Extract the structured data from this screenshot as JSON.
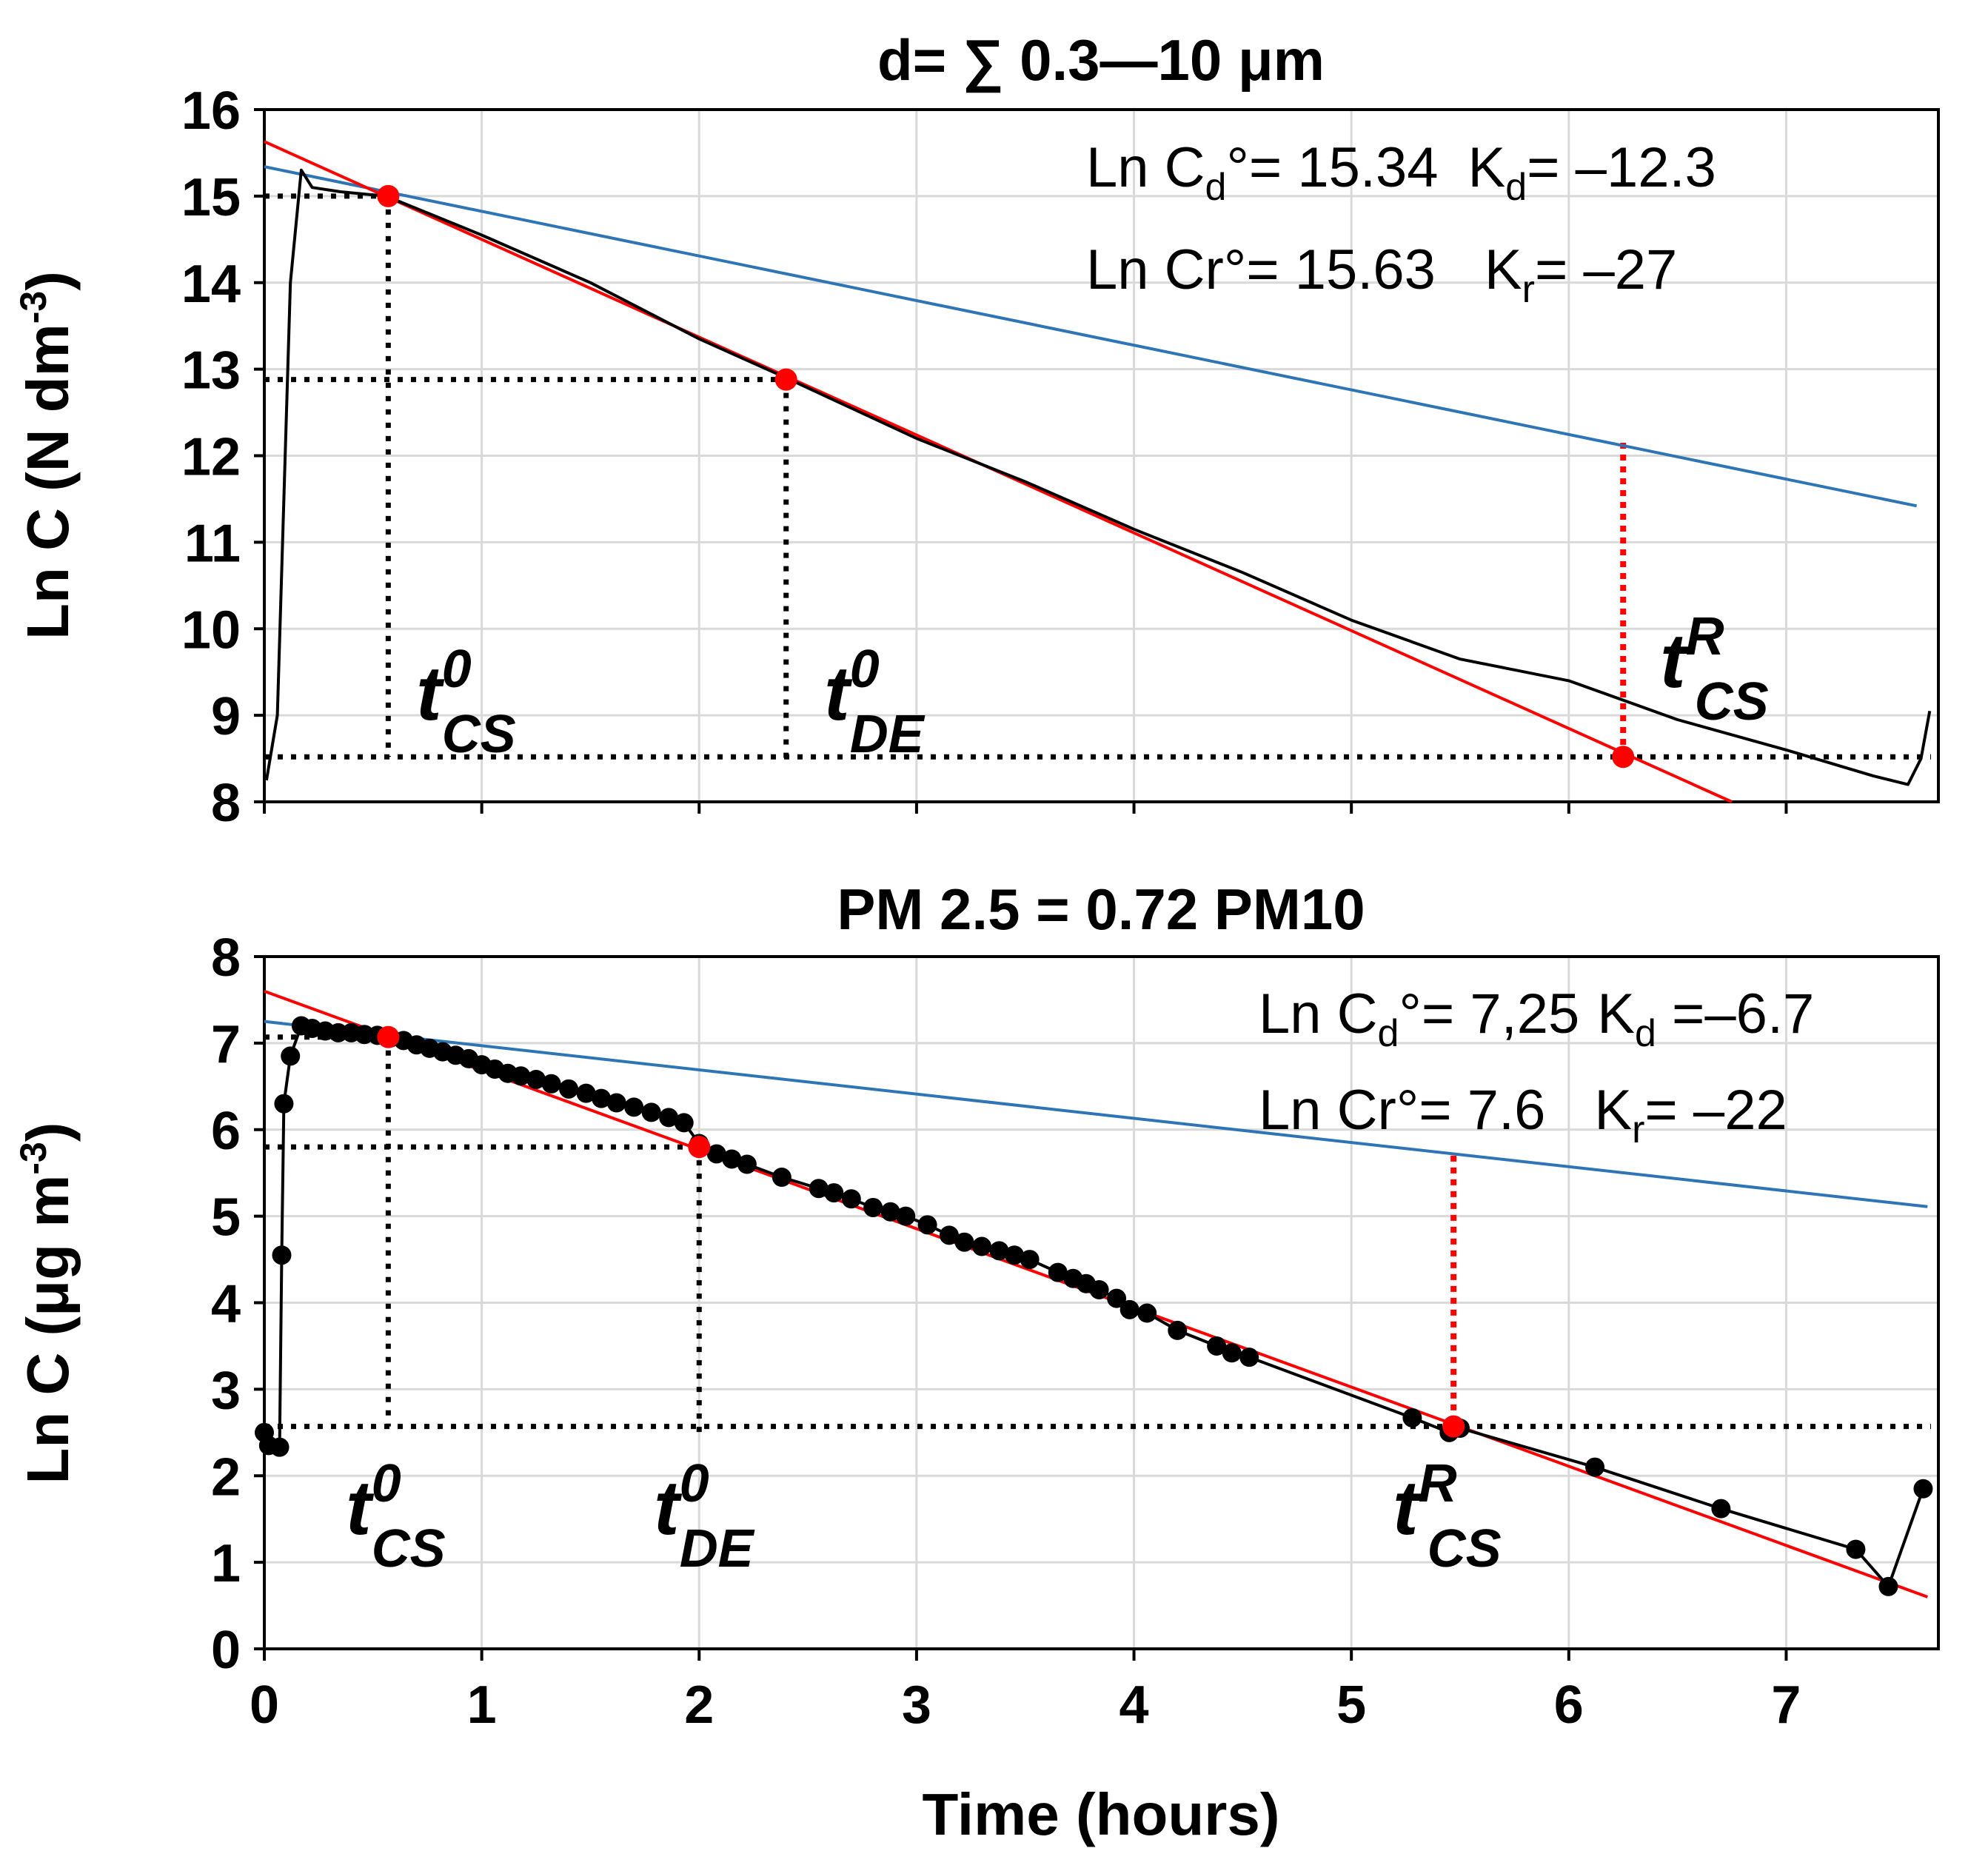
{
  "chart_data": [
    {
      "type": "line",
      "title": "d= ∑ 0.3—10 μm",
      "ylabel": "Ln C (N dm",
      "ylabel_sup": "-3",
      "ylabel_end": ")",
      "xlabel": "",
      "xlim": [
        0,
        7.7
      ],
      "ylim": [
        8,
        16
      ],
      "x_ticks": [
        0,
        1,
        2,
        3,
        4,
        5,
        6,
        7
      ],
      "y_ticks": [
        8,
        9,
        10,
        11,
        12,
        13,
        14,
        15,
        16
      ],
      "x_tick_labels_shown": false,
      "grid": true,
      "series": [
        {
          "name": "measured",
          "color": "#000000",
          "markers": false,
          "points": [
            [
              0.01,
              8.25
            ],
            [
              0.06,
              9.0
            ],
            [
              0.12,
              14.0
            ],
            [
              0.17,
              15.3
            ],
            [
              0.22,
              15.1
            ],
            [
              0.35,
              15.05
            ],
            [
              0.56,
              15.0
            ],
            [
              1.0,
              14.55
            ],
            [
              1.5,
              14.0
            ],
            [
              2.0,
              13.35
            ],
            [
              2.4,
              12.9
            ],
            [
              3.0,
              12.2
            ],
            [
              3.5,
              11.7
            ],
            [
              4.0,
              11.15
            ],
            [
              4.5,
              10.65
            ],
            [
              5.0,
              10.1
            ],
            [
              5.5,
              9.65
            ],
            [
              6.0,
              9.4
            ],
            [
              6.5,
              8.95
            ],
            [
              7.0,
              8.6
            ],
            [
              7.4,
              8.3
            ],
            [
              7.56,
              8.2
            ],
            [
              7.62,
              8.5
            ],
            [
              7.66,
              9.05
            ]
          ]
        },
        {
          "name": "Ln Cd fit",
          "color": "#2e75b6",
          "line_from": [
            0.0,
            15.34
          ],
          "line_to": [
            7.6,
            11.42
          ]
        },
        {
          "name": "Ln Cr fit",
          "color": "#ff0000",
          "line_from": [
            0.0,
            15.63
          ],
          "line_to": [
            6.75,
            8.0
          ]
        }
      ],
      "key_points": [
        {
          "label": "t0_CS",
          "x": 0.57,
          "y": 15.0
        },
        {
          "label": "t0_DE",
          "x": 2.4,
          "y": 12.88
        },
        {
          "label": "tR_CS",
          "x": 6.25,
          "y": 8.52
        }
      ],
      "guide_levels": {
        "y_t0_cs": 15.0,
        "y_t0_de": 12.88,
        "y_baseline": 8.52,
        "y_red_top": 12.15
      },
      "annotations": [
        {
          "base": "Ln C",
          "sub": "d",
          "tail": "°= 15.34",
          "k_base": "K",
          "k_sub": "d",
          "k_tail": "= –12.3"
        },
        {
          "base": "Ln Cr°= 15.63",
          "sub": "",
          "tail": "",
          "k_base": "K",
          "k_sub": "r",
          "k_tail": "= –27"
        }
      ],
      "marker_labels": [
        {
          "main": "t",
          "sup": "0",
          "sub": "CS"
        },
        {
          "main": "t",
          "sup": "0",
          "sub": "DE"
        },
        {
          "main": "t",
          "sup": "R",
          "sub": "CS"
        }
      ]
    },
    {
      "type": "line",
      "title": "PM 2.5 = 0.72 PM10",
      "ylabel": "Ln C (μg m",
      "ylabel_sup": "-3",
      "ylabel_end": ")",
      "xlabel": "Time (hours)",
      "xlim": [
        0,
        7.7
      ],
      "ylim": [
        0,
        8
      ],
      "x_ticks": [
        0,
        1,
        2,
        3,
        4,
        5,
        6,
        7
      ],
      "y_ticks": [
        0,
        1,
        2,
        3,
        4,
        5,
        6,
        7,
        8
      ],
      "x_tick_labels_shown": true,
      "grid": true,
      "series": [
        {
          "name": "measured",
          "color": "#000000",
          "markers": true,
          "points": [
            [
              0.0,
              2.5
            ],
            [
              0.02,
              2.35
            ],
            [
              0.07,
              2.33
            ],
            [
              0.08,
              4.55
            ],
            [
              0.09,
              6.3
            ],
            [
              0.12,
              6.85
            ],
            [
              0.17,
              7.2
            ],
            [
              0.22,
              7.17
            ],
            [
              0.28,
              7.14
            ],
            [
              0.34,
              7.12
            ],
            [
              0.4,
              7.12
            ],
            [
              0.46,
              7.1
            ],
            [
              0.52,
              7.09
            ],
            [
              0.58,
              7.06
            ],
            [
              0.64,
              7.03
            ],
            [
              0.7,
              6.98
            ],
            [
              0.76,
              6.94
            ],
            [
              0.82,
              6.9
            ],
            [
              0.88,
              6.86
            ],
            [
              0.94,
              6.82
            ],
            [
              1.0,
              6.75
            ],
            [
              1.06,
              6.7
            ],
            [
              1.12,
              6.65
            ],
            [
              1.18,
              6.62
            ],
            [
              1.25,
              6.58
            ],
            [
              1.32,
              6.53
            ],
            [
              1.4,
              6.47
            ],
            [
              1.48,
              6.42
            ],
            [
              1.55,
              6.36
            ],
            [
              1.62,
              6.31
            ],
            [
              1.7,
              6.26
            ],
            [
              1.78,
              6.2
            ],
            [
              1.86,
              6.14
            ],
            [
              1.93,
              6.08
            ],
            [
              2.0,
              5.84
            ],
            [
              2.08,
              5.72
            ],
            [
              2.15,
              5.66
            ],
            [
              2.22,
              5.6
            ],
            [
              2.38,
              5.45
            ],
            [
              2.55,
              5.32
            ],
            [
              2.62,
              5.27
            ],
            [
              2.7,
              5.2
            ],
            [
              2.8,
              5.1
            ],
            [
              2.88,
              5.05
            ],
            [
              2.95,
              5.0
            ],
            [
              3.05,
              4.9
            ],
            [
              3.15,
              4.78
            ],
            [
              3.22,
              4.7
            ],
            [
              3.3,
              4.65
            ],
            [
              3.38,
              4.6
            ],
            [
              3.45,
              4.55
            ],
            [
              3.52,
              4.5
            ],
            [
              3.65,
              4.35
            ],
            [
              3.72,
              4.28
            ],
            [
              3.78,
              4.22
            ],
            [
              3.84,
              4.15
            ],
            [
              3.92,
              4.05
            ],
            [
              3.98,
              3.92
            ],
            [
              4.06,
              3.88
            ],
            [
              4.2,
              3.68
            ],
            [
              4.38,
              3.5
            ],
            [
              4.45,
              3.42
            ],
            [
              4.53,
              3.37
            ],
            [
              5.28,
              2.67
            ],
            [
              5.45,
              2.5
            ],
            [
              5.5,
              2.55
            ],
            [
              6.12,
              2.1
            ],
            [
              6.7,
              1.62
            ],
            [
              7.32,
              1.15
            ],
            [
              7.47,
              0.72
            ],
            [
              7.63,
              1.85
            ]
          ]
        },
        {
          "name": "Ln Cd fit",
          "color": "#2e75b6",
          "line_from": [
            0.0,
            7.25
          ],
          "line_to": [
            7.65,
            5.11
          ]
        },
        {
          "name": "Ln Cr fit",
          "color": "#ff0000",
          "line_from": [
            0.0,
            7.6
          ],
          "line_to": [
            7.65,
            0.6
          ]
        }
      ],
      "key_points": [
        {
          "label": "t0_CS",
          "x": 0.57,
          "y": 7.07
        },
        {
          "label": "t0_DE",
          "x": 2.0,
          "y": 5.8
        },
        {
          "label": "tR_CS",
          "x": 5.47,
          "y": 2.57
        }
      ],
      "guide_levels": {
        "y_t0_cs": 7.07,
        "y_t0_de": 5.8,
        "y_baseline": 2.57,
        "y_red_top": 5.7
      },
      "annotations": [
        {
          "base": "Ln C",
          "sub": "d",
          "tail": "°= 7,25",
          "k_base": "K",
          "k_sub": "d",
          "k_tail": " =–6.7"
        },
        {
          "base": "Ln Cr°= 7.6",
          "sub": "",
          "tail": "",
          "k_base": "K",
          "k_sub": "r",
          "k_tail": "= –22"
        }
      ],
      "marker_labels": [
        {
          "main": "t",
          "sup": "0",
          "sub": "CS"
        },
        {
          "main": "t",
          "sup": "0",
          "sub": "DE"
        },
        {
          "main": "t",
          "sup": "R",
          "sub": "CS"
        }
      ]
    }
  ]
}
